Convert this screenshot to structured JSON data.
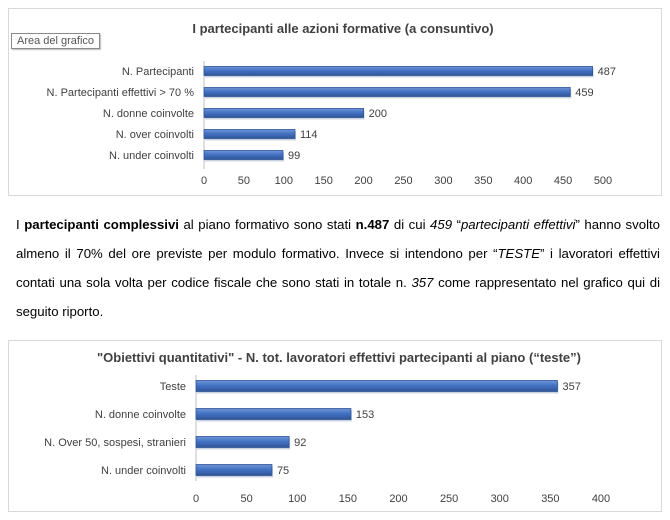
{
  "tooltip": "Area del grafico",
  "paragraph": {
    "s1": "I ",
    "s2": "partecipanti complessivi",
    "s3": " al piano formativo sono stati ",
    "s4": "n.487",
    "s5": " di cui ",
    "s6": "459",
    "s7": " “",
    "s8": "partecipanti effettivi",
    "s9": "” hanno svolto almeno il 70% del ore previste per modulo formativo. Invece si intendono per “",
    "s10": "TESTE",
    "s11": "” i lavoratori effettivi contati una sola volta per codice fiscale che sono stati in totale n. ",
    "s12": "357",
    "s13": " come rappresentato nel grafico qui di seguito riporto."
  },
  "colors": {
    "bar": "#4472c4",
    "bar_dark": "#2f5597",
    "grid": "#d9d9d9",
    "text": "#404040",
    "title": "#404040"
  },
  "chart_data": [
    {
      "type": "bar",
      "orientation": "horizontal",
      "title": "I partecipanti alle azioni formative (a consuntivo)",
      "categories": [
        "N. Partecipanti",
        "N. Partecipanti effettivi > 70 %",
        "N. donne coinvolte",
        "N. over coinvolti",
        "N. under coinvolti"
      ],
      "values": [
        487,
        459,
        200,
        114,
        99
      ],
      "xlim": [
        0,
        500
      ],
      "ticks": [
        "0",
        "50",
        "100",
        "150",
        "200",
        "250",
        "300",
        "350",
        "400",
        "450",
        "500"
      ],
      "grid": false
    },
    {
      "type": "bar",
      "orientation": "horizontal",
      "title": "\"Obiettivi quantitativi\" - N. tot. lavoratori effettivi partecipanti al piano (“teste”)",
      "categories": [
        "Teste",
        "N. donne coinvolte",
        "N. Over 50, sospesi, stranieri",
        "N. under coinvolti"
      ],
      "values": [
        357,
        153,
        92,
        75
      ],
      "xlim": [
        0,
        400
      ],
      "ticks": [
        "0",
        "50",
        "100",
        "150",
        "200",
        "250",
        "300",
        "350",
        "400"
      ],
      "grid": false
    }
  ]
}
